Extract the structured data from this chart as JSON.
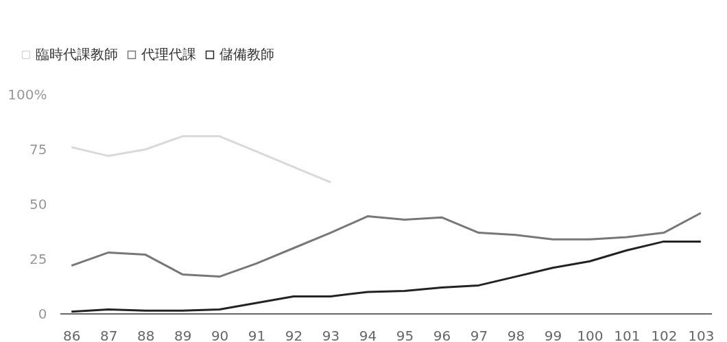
{
  "chart_data": {
    "type": "line",
    "categories": [
      "86",
      "87",
      "88",
      "89",
      "90",
      "91",
      "92",
      "93",
      "94",
      "95",
      "96",
      "97",
      "98",
      "99",
      "100",
      "101",
      "102",
      "103"
    ],
    "series": [
      {
        "name": "臨時代課教師",
        "color": "#d9d9d9",
        "values": [
          76,
          72,
          75,
          81,
          81,
          74,
          67,
          60,
          null,
          null,
          null,
          null,
          null,
          null,
          null,
          null,
          null,
          null
        ]
      },
      {
        "name": "代理代課",
        "color": "#777777",
        "values": [
          22,
          28,
          27,
          18,
          17,
          23,
          30,
          37,
          44.5,
          43,
          44,
          37,
          36,
          34,
          34,
          35,
          37,
          46
        ]
      },
      {
        "name": "儲備教師",
        "color": "#222222",
        "values": [
          1,
          2,
          1.5,
          1.5,
          2,
          5,
          8,
          8,
          10,
          10.5,
          12,
          13,
          17,
          21,
          24,
          29,
          33,
          33
        ]
      }
    ],
    "ylim": [
      0,
      100
    ],
    "yticks": [
      0,
      25,
      50,
      75,
      {
        "value": 100,
        "label": "100%"
      }
    ],
    "grid": false,
    "legend": "top left",
    "marker": "none",
    "line_style": "solid"
  }
}
